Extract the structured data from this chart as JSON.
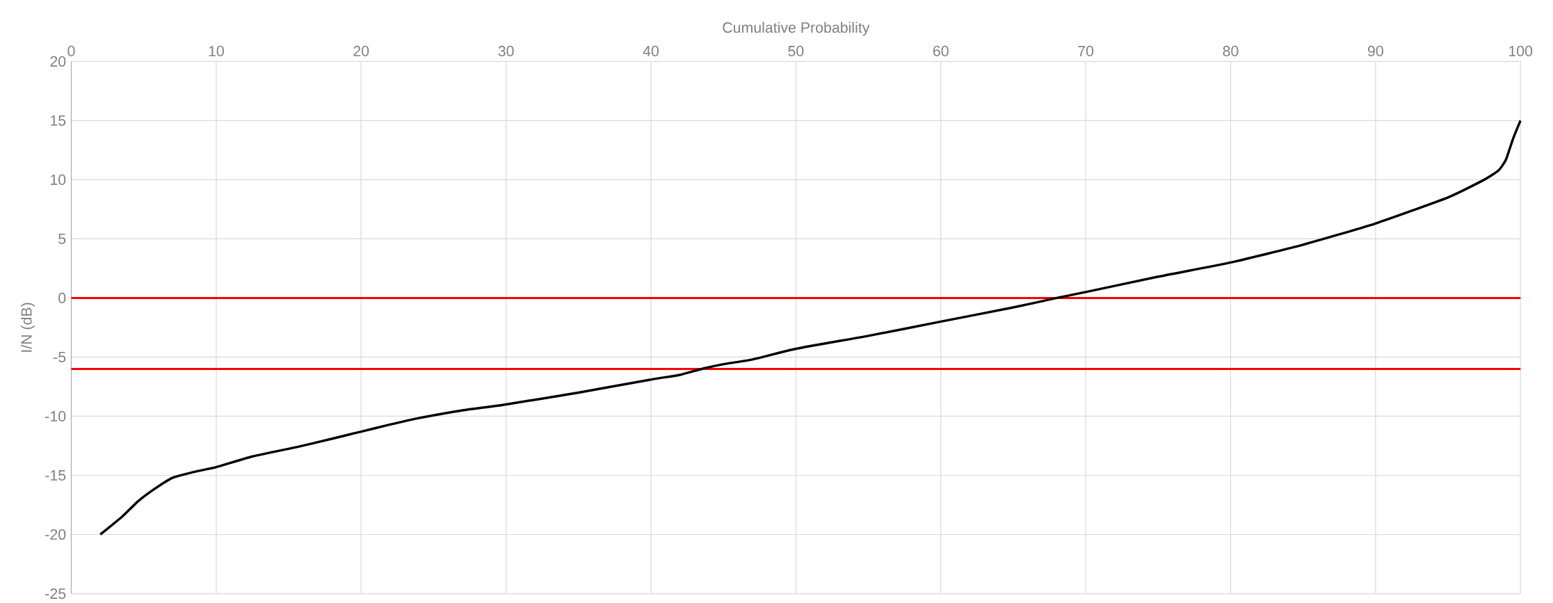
{
  "chart_data": {
    "type": "line",
    "xlabel": "Cumulative Probability",
    "ylabel": "I/N (dB)",
    "x": [
      2,
      3.5,
      4.6,
      5.8,
      7,
      8.5,
      10,
      12.5,
      15.6,
      18,
      20,
      22,
      23.8,
      27,
      30,
      35,
      40,
      42,
      43.5,
      45,
      47,
      50,
      55,
      60,
      65,
      68,
      70,
      75,
      80,
      85,
      90,
      95,
      97.5,
      98.5,
      99,
      99.5,
      100
    ],
    "series": [
      {
        "color": "#000000",
        "values": [
          -20,
          -18.5,
          -17.2,
          -16.1,
          -15.2,
          -14.7,
          -14.3,
          -13.4,
          -12.6,
          -11.9,
          -11.3,
          -10.7,
          -10.2,
          -9.5,
          -9,
          -8,
          -6.9,
          -6.5,
          -6,
          -5.6,
          -5.2,
          -4.3,
          -3.2,
          -2,
          -0.8,
          0,
          0.5,
          1.8,
          3,
          4.5,
          6.3,
          8.5,
          10,
          10.8,
          11.7,
          13.5,
          15
        ]
      }
    ],
    "xlim": [
      0,
      100
    ],
    "xticks": [
      0,
      10,
      20,
      30,
      40,
      50,
      60,
      70,
      80,
      90,
      100
    ],
    "ylim": [
      -25,
      20
    ],
    "yticks": [
      -25,
      -20,
      -15,
      -10,
      -5,
      0,
      5,
      10,
      15,
      20
    ],
    "grid": true,
    "marker": "none",
    "line_style": "solid",
    "ref_lines": [
      {
        "axis": "y",
        "value": 0,
        "color": "#ff0000"
      },
      {
        "axis": "y",
        "value": -6,
        "color": "#ff0000"
      }
    ]
  }
}
